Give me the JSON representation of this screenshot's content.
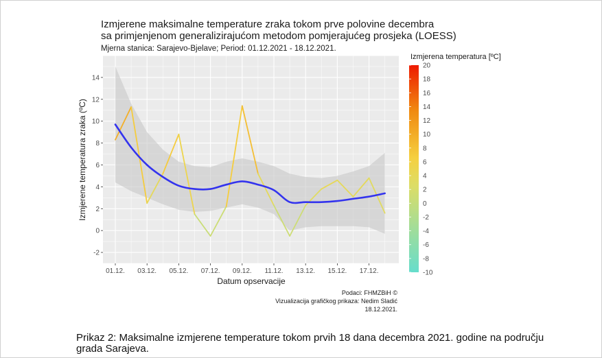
{
  "chart_data": {
    "type": "line",
    "title": "Izmjerene maksimalne temperature zraka tokom prve polovine decembra",
    "title_line2": "sa primjenjenom generalizirajućom metodom pomjerajućeg prosjeka (LOESS)",
    "subtitle": "Mjerna stanica: Sarajevo-Bjelave; Period: 01.12.2021 - 18.12.2021.",
    "xlabel": "Datum opservacije",
    "ylabel": "Izmjerene temperatura zraka (ºC)",
    "ylim": [
      -3,
      16
    ],
    "y_ticks": [
      -2,
      0,
      2,
      4,
      6,
      8,
      10,
      12,
      14
    ],
    "x_ticks": [
      "01.12.",
      "03.12.",
      "05.12.",
      "07.12.",
      "09.12.",
      "11.12.",
      "13.12.",
      "15.12.",
      "17.12."
    ],
    "x": [
      1,
      2,
      3,
      4,
      5,
      6,
      7,
      8,
      9,
      10,
      11,
      12,
      13,
      14,
      15,
      16,
      17,
      18
    ],
    "series": [
      {
        "name": "Izmjerena temperatura",
        "values": [
          8.3,
          11.3,
          2.5,
          5.2,
          8.8,
          1.5,
          -0.5,
          2.2,
          11.4,
          5.2,
          2.3,
          -0.5,
          2.3,
          3.8,
          4.6,
          3.1,
          4.8,
          1.6
        ]
      },
      {
        "name": "LOESS",
        "values": [
          9.7,
          7.6,
          6.0,
          4.9,
          4.1,
          3.8,
          3.8,
          4.2,
          4.5,
          4.2,
          3.7,
          2.6,
          2.6,
          2.6,
          2.7,
          2.9,
          3.1,
          3.4
        ]
      }
    ],
    "band_upper": [
      15.0,
      11.6,
      9.0,
      7.4,
      6.3,
      5.9,
      5.8,
      6.3,
      6.6,
      6.3,
      5.9,
      5.2,
      4.9,
      4.8,
      5.0,
      5.4,
      5.9,
      7.1
    ],
    "band_lower": [
      4.4,
      3.6,
      3.0,
      2.4,
      1.9,
      1.7,
      1.8,
      2.1,
      2.4,
      2.1,
      1.5,
      0.0,
      0.3,
      0.4,
      0.4,
      0.4,
      0.3,
      -0.3
    ],
    "legend": {
      "title": "Izmjerena temperatura [ºC]",
      "ticks": [
        "20",
        "18",
        "16",
        "14",
        "12",
        "10",
        "8",
        "6",
        "4",
        "2",
        "0",
        "-2",
        "-4",
        "-6",
        "-8",
        "-10"
      ],
      "range": [
        -10,
        20
      ],
      "placement": "right"
    },
    "colors": {
      "loess": "#3333ee",
      "band": "#c8c8c8",
      "panel": "#ebebeb",
      "grid": "#ffffff",
      "low": "#66ddcc",
      "mid": "#eedd55",
      "high": "#ee2200"
    },
    "source_lines": [
      "Podaci: FHMZBiH ©",
      "Vizualizacija grafičkog prikaza: Nedim Sladić",
      "18.12.2021."
    ]
  },
  "caption": "Prikaz 2: Maksimalne izmjerene temperature tokom prvih 18 dana decembra 2021. godine na području grada Sarajeva."
}
